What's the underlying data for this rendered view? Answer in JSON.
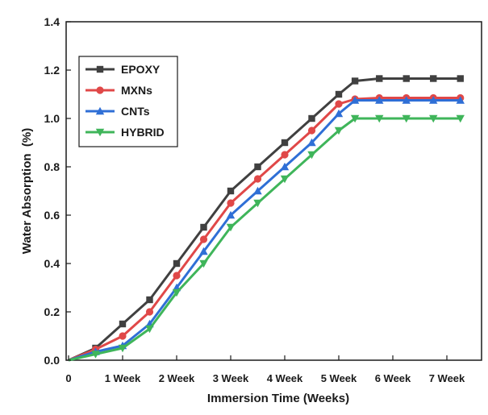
{
  "chart_data": {
    "type": "line",
    "title": "",
    "xlabel": "Immersion Time (Weeks)",
    "ylabel": "Water Absorption  (%)",
    "xlim": [
      0,
      7.5
    ],
    "ylim": [
      0,
      1.4
    ],
    "x_ticks": [
      {
        "value": 0,
        "label": "0"
      },
      {
        "value": 1,
        "label": "1 Week"
      },
      {
        "value": 2,
        "label": "2 Week"
      },
      {
        "value": 3,
        "label": "3 Week"
      },
      {
        "value": 4,
        "label": "4 Week"
      },
      {
        "value": 5,
        "label": "5 Week"
      },
      {
        "value": 6,
        "label": "6 Week"
      },
      {
        "value": 7,
        "label": "7 Week"
      }
    ],
    "y_ticks": [
      {
        "value": 0.0,
        "label": "0.0"
      },
      {
        "value": 0.2,
        "label": "0.2"
      },
      {
        "value": 0.4,
        "label": "0.4"
      },
      {
        "value": 0.6,
        "label": "0.6"
      },
      {
        "value": 0.8,
        "label": "0.8"
      },
      {
        "value": 1.0,
        "label": "1.0"
      },
      {
        "value": 1.2,
        "label": "1.2"
      },
      {
        "value": 1.4,
        "label": "1.4"
      }
    ],
    "grid": false,
    "legend_position": "top-left",
    "x": [
      0,
      0.5,
      1,
      1.5,
      2,
      2.5,
      3,
      3.5,
      4,
      4.5,
      5,
      5.3,
      5.75,
      6.25,
      6.75,
      7.25
    ],
    "series": [
      {
        "name": "EPOXY",
        "color": "#404040",
        "marker": "square",
        "values": [
          0,
          0.05,
          0.15,
          0.25,
          0.4,
          0.55,
          0.7,
          0.8,
          0.9,
          1.0,
          1.1,
          1.155,
          1.165,
          1.165,
          1.165,
          1.165
        ]
      },
      {
        "name": "MXNs",
        "color": "#e04848",
        "marker": "circle",
        "values": [
          0,
          0.045,
          0.1,
          0.2,
          0.35,
          0.5,
          0.65,
          0.75,
          0.85,
          0.95,
          1.06,
          1.08,
          1.085,
          1.085,
          1.085,
          1.085
        ]
      },
      {
        "name": "CNTs",
        "color": "#2f6fd6",
        "marker": "triangle-up",
        "values": [
          0,
          0.035,
          0.06,
          0.15,
          0.3,
          0.45,
          0.6,
          0.7,
          0.8,
          0.9,
          1.02,
          1.075,
          1.075,
          1.075,
          1.075,
          1.075
        ]
      },
      {
        "name": "HYBRID",
        "color": "#3fb55a",
        "marker": "triangle-down",
        "values": [
          0,
          0.025,
          0.05,
          0.13,
          0.28,
          0.4,
          0.55,
          0.65,
          0.75,
          0.85,
          0.95,
          1.0,
          1.0,
          1.0,
          1.0,
          1.0
        ]
      }
    ]
  }
}
